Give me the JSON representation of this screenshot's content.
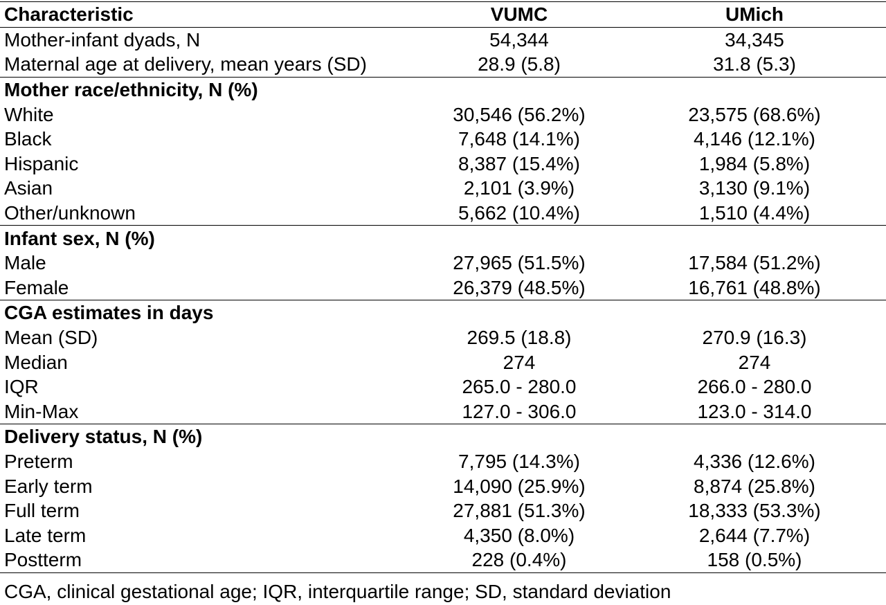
{
  "table": {
    "headers": [
      "Characteristic",
      "VUMC",
      "UMich"
    ],
    "rows": [
      {
        "type": "data",
        "label": "Mother-infant dyads, N",
        "vumc": "54,344",
        "umich": "34,345"
      },
      {
        "type": "data",
        "label": "Maternal age at delivery, mean years (SD)",
        "vumc": "28.9 (5.8)",
        "umich": "31.8 (5.3)"
      },
      {
        "type": "section",
        "label": "Mother race/ethnicity, N (%)"
      },
      {
        "type": "data",
        "label": "White",
        "vumc": "30,546 (56.2%)",
        "umich": "23,575 (68.6%)"
      },
      {
        "type": "data",
        "label": "Black",
        "vumc": "7,648 (14.1%)",
        "umich": "4,146 (12.1%)"
      },
      {
        "type": "data",
        "label": "Hispanic",
        "vumc": "8,387 (15.4%)",
        "umich": "1,984 (5.8%)"
      },
      {
        "type": "data",
        "label": "Asian",
        "vumc": "2,101 (3.9%)",
        "umich": "3,130 (9.1%)"
      },
      {
        "type": "data",
        "label": "Other/unknown",
        "vumc": "5,662 (10.4%)",
        "umich": "1,510 (4.4%)"
      },
      {
        "type": "section",
        "label": "Infant sex, N (%)"
      },
      {
        "type": "data",
        "label": "Male",
        "vumc": "27,965 (51.5%)",
        "umich": "17,584 (51.2%)"
      },
      {
        "type": "data",
        "label": "Female",
        "vumc": "26,379 (48.5%)",
        "umich": "16,761 (48.8%)"
      },
      {
        "type": "section",
        "label": "CGA estimates in days"
      },
      {
        "type": "data",
        "label": "Mean (SD)",
        "vumc": "269.5 (18.8)",
        "umich": "270.9 (16.3)"
      },
      {
        "type": "data",
        "label": "Median",
        "vumc": "274",
        "umich": "274"
      },
      {
        "type": "data",
        "label": "IQR",
        "vumc": "265.0 - 280.0",
        "umich": "266.0 - 280.0"
      },
      {
        "type": "data",
        "label": "Min-Max",
        "vumc": "127.0 - 306.0",
        "umich": "123.0 - 314.0"
      },
      {
        "type": "section",
        "label": "Delivery status, N (%)"
      },
      {
        "type": "data",
        "label": "Preterm",
        "vumc": "7,795 (14.3%)",
        "umich": "4,336 (12.6%)"
      },
      {
        "type": "data",
        "label": "Early term",
        "vumc": "14,090 (25.9%)",
        "umich": "8,874 (25.8%)"
      },
      {
        "type": "data",
        "label": "Full term",
        "vumc": "27,881 (51.3%)",
        "umich": "18,333 (53.3%)"
      },
      {
        "type": "data",
        "label": "Late term",
        "vumc": "4,350 (8.0%)",
        "umich": "2,644 (7.7%)"
      },
      {
        "type": "data",
        "label": "Postterm",
        "vumc": "228 (0.4%)",
        "umich": "158 (0.5%)"
      }
    ]
  },
  "footnote": "CGA, clinical gestational age; IQR, interquartile range; SD, standard deviation"
}
